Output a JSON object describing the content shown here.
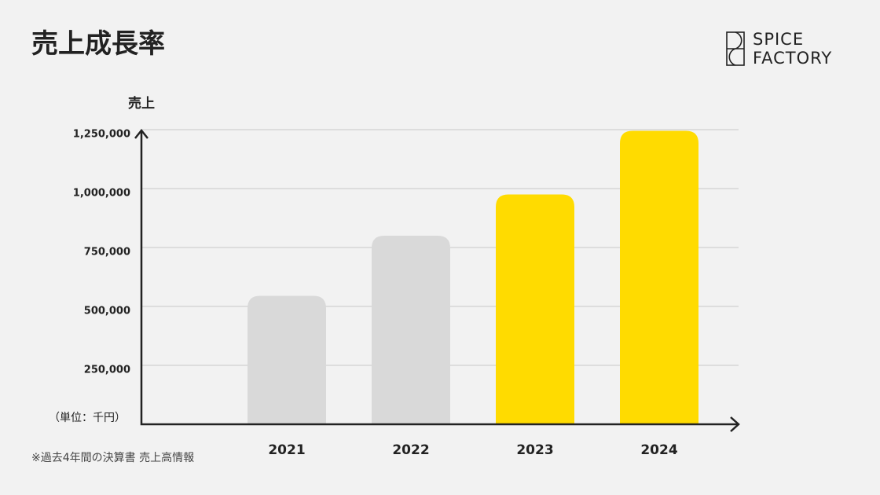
{
  "chart_data": {
    "type": "bar",
    "title": "売上成長率",
    "y_label": "売上",
    "unit_note": "（単位：千円）",
    "footnote": "※過去4年間の決算書 売上高情報",
    "categories": [
      "2021",
      "2022",
      "2023",
      "2024"
    ],
    "values": [
      545000,
      800000,
      975000,
      1245000
    ],
    "colors": [
      "#d9d9d9",
      "#d9d9d9",
      "#ffdb00",
      "#ffdb00"
    ],
    "ylim": [
      0,
      1250000
    ],
    "yticks": [
      {
        "value": 250000,
        "label": "250,000"
      },
      {
        "value": 500000,
        "label": "500,000"
      },
      {
        "value": 750000,
        "label": "750,000"
      },
      {
        "value": 1000000,
        "label": "1,000,000"
      },
      {
        "value": 1250000,
        "label": "1,250,000"
      }
    ],
    "grid": true
  },
  "logo": [
    "SPICE",
    "FACTORY"
  ]
}
